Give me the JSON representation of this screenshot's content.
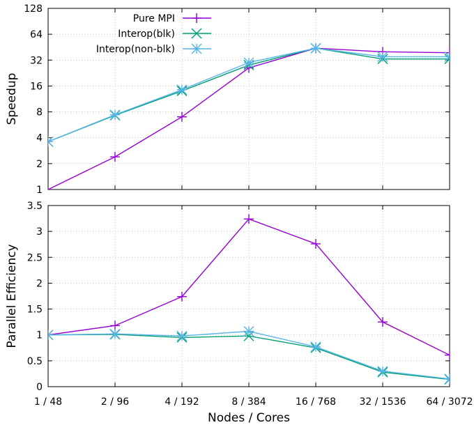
{
  "colors": {
    "pure_mpi": "#9400d3",
    "interop_blk": "#009e73",
    "interop_nonblk": "#56b4e9"
  },
  "chart_data": [
    {
      "type": "line",
      "ylabel": "Speedup",
      "yscale": "log2",
      "ylim": [
        1,
        128
      ],
      "yticks": [
        "1",
        "2",
        "4",
        "8",
        "16",
        "32",
        "64",
        "128"
      ],
      "categories": [
        "1 / 48",
        "2 / 96",
        "4 / 192",
        "8 / 384",
        "16 / 768",
        "32 / 1536",
        "64 / 3072"
      ],
      "grid": true,
      "legend_position": "top-left",
      "series": [
        {
          "name": "Pure MPI",
          "marker": "plus",
          "color": "#9400d3",
          "values": [
            1,
            2.4,
            7,
            26,
            44,
            40,
            39
          ]
        },
        {
          "name": "Interop(blk)",
          "marker": "x",
          "color": "#009e73",
          "values": [
            3.6,
            7.3,
            14,
            28,
            44,
            33,
            33
          ]
        },
        {
          "name": "Interop(non-blk)",
          "marker": "star",
          "color": "#56b4e9",
          "values": [
            3.6,
            7.4,
            14.5,
            30,
            44,
            35,
            35
          ]
        }
      ]
    },
    {
      "type": "line",
      "ylabel": "Parallel Efficiency",
      "xlabel": "Nodes / Cores",
      "ylim": [
        0,
        3.5
      ],
      "yticks": [
        "0",
        "0.5",
        "1",
        "1.5",
        "2",
        "2.5",
        "3",
        "3.5"
      ],
      "categories": [
        "1 / 48",
        "2 / 96",
        "4 / 192",
        "8 / 384",
        "16 / 768",
        "32 / 1536",
        "64 / 3072"
      ],
      "grid": true,
      "series": [
        {
          "name": "Pure MPI",
          "marker": "plus",
          "color": "#9400d3",
          "values": [
            1.0,
            1.18,
            1.74,
            3.24,
            2.76,
            1.25,
            0.61
          ]
        },
        {
          "name": "Interop(blk)",
          "marker": "x",
          "color": "#009e73",
          "values": [
            1.0,
            1.01,
            0.95,
            0.98,
            0.75,
            0.28,
            0.14
          ]
        },
        {
          "name": "Interop(non-blk)",
          "marker": "star",
          "color": "#56b4e9",
          "values": [
            1.0,
            1.02,
            0.98,
            1.07,
            0.77,
            0.3,
            0.15
          ]
        }
      ]
    }
  ]
}
